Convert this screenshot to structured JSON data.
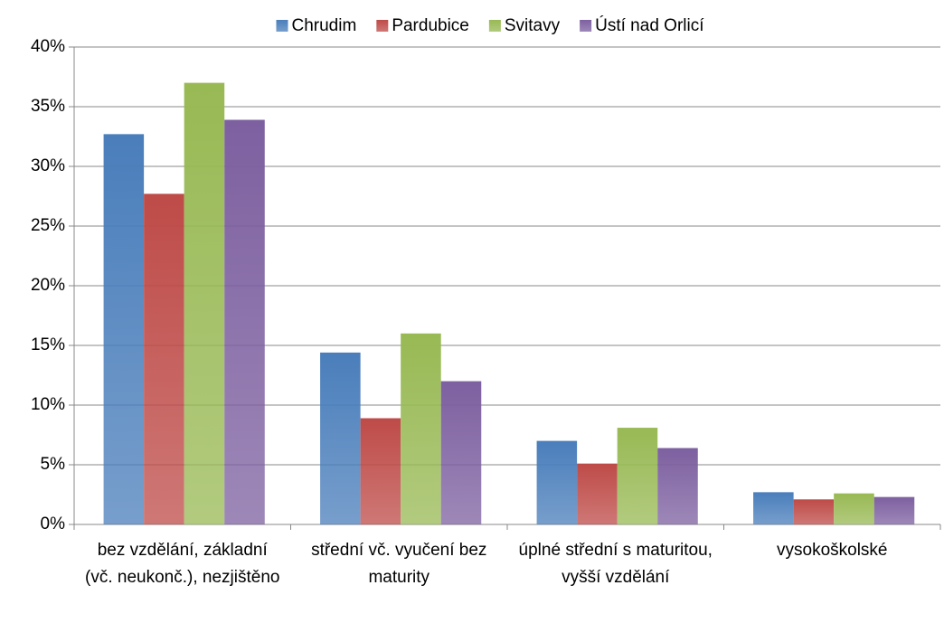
{
  "chart_data": {
    "type": "bar",
    "categories": [
      "bez vzdělání, základní (vč. neukonč.), nezjištěno",
      "střední vč. vyučení bez maturity",
      "úplné střední s maturitou, vyšší vzdělání",
      "vysokoškolské"
    ],
    "series": [
      {
        "name": "Chrudim",
        "color": "#4a7ebb",
        "values": [
          32.7,
          14.4,
          7.0,
          2.7
        ]
      },
      {
        "name": "Pardubice",
        "color": "#be4b48",
        "values": [
          27.7,
          8.9,
          5.1,
          2.1
        ]
      },
      {
        "name": "Svitavy",
        "color": "#98b954",
        "values": [
          37.0,
          16.0,
          8.1,
          2.6
        ]
      },
      {
        "name": "Ústí nad Orlicí",
        "color": "#7d60a0",
        "values": [
          33.9,
          12.0,
          6.4,
          2.3
        ]
      }
    ],
    "ylim": [
      0,
      40
    ],
    "yticks": [
      {
        "value": 0,
        "label": "0%"
      },
      {
        "value": 5,
        "label": "5%"
      },
      {
        "value": 10,
        "label": "10%"
      },
      {
        "value": 15,
        "label": "15%"
      },
      {
        "value": 20,
        "label": "20%"
      },
      {
        "value": 25,
        "label": "25%"
      },
      {
        "value": 30,
        "label": "30%"
      },
      {
        "value": 35,
        "label": "35%"
      },
      {
        "value": 40,
        "label": "40%"
      }
    ],
    "grid": true,
    "legend": "top"
  }
}
